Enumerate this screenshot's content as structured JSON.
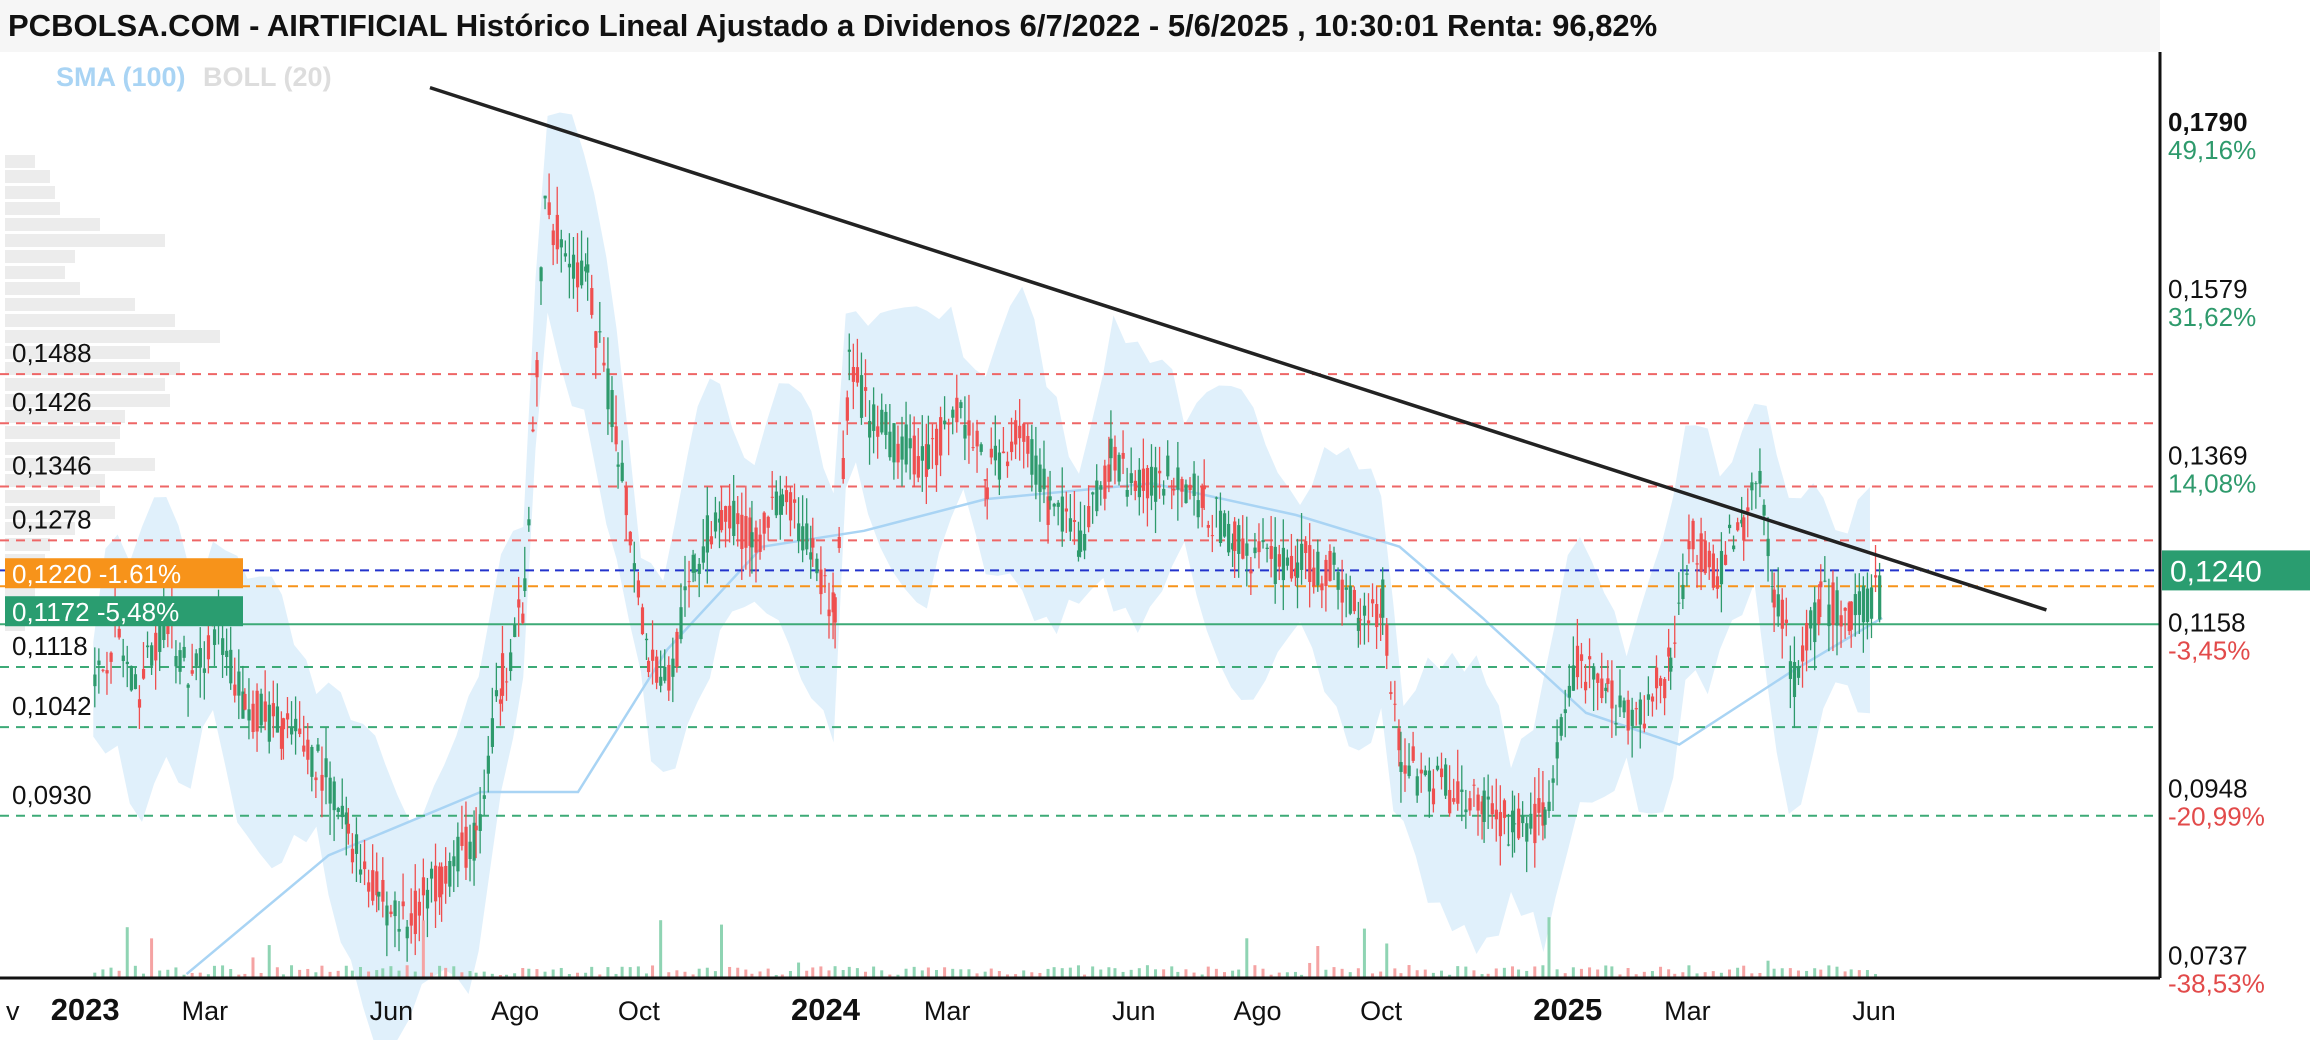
{
  "title": "PCBOLSA.COM - AIRTIFICIAL Histórico Lineal Ajustado a Dividenos 6/7/2022 - 5/6/2025 , 10:30:01 Renta: 96,82%",
  "indicators": {
    "sma": "SMA (100)",
    "boll": "BOLL (20)"
  },
  "colors": {
    "up": "#2e9a6c",
    "down": "#ef4f4f",
    "sma": "#a9d4f4",
    "band": "#d5ebfa",
    "trendline": "#222222",
    "current": "#2a9d70",
    "entry": "#f7931a",
    "support": "#3daa77"
  },
  "chart_data": {
    "type": "candlestick",
    "title": "PCBOLSA.COM - AIRTIFICIAL Histórico Lineal Ajustado a Dividenos 6/7/2022 - 5/6/2025 , 10:30:01 Renta: 96,82%",
    "y_axis": [
      {
        "value": 0.179,
        "label": "0,1790",
        "pct": "49,16%",
        "bold": true
      },
      {
        "value": 0.1579,
        "label": "0,1579",
        "pct": "31,62%"
      },
      {
        "value": 0.1369,
        "label": "0,1369",
        "pct": "14,08%"
      },
      {
        "value": 0.1158,
        "label": "0,1158",
        "pct": "-3,45%"
      },
      {
        "value": 0.0948,
        "label": "0,0948",
        "pct": "-20,99%"
      },
      {
        "value": 0.0737,
        "label": "0,0737",
        "pct": "-38,53%"
      }
    ],
    "x_axis": [
      {
        "label": "v",
        "date": "2022-11"
      },
      {
        "label": "2023",
        "date": "2023-01",
        "bold": true
      },
      {
        "label": "Mar",
        "date": "2023-03"
      },
      {
        "label": "Jun",
        "date": "2023-06"
      },
      {
        "label": "Ago",
        "date": "2023-08"
      },
      {
        "label": "Oct",
        "date": "2023-10"
      },
      {
        "label": "2024",
        "date": "2024-01",
        "bold": true
      },
      {
        "label": "Mar",
        "date": "2024-03"
      },
      {
        "label": "Jun",
        "date": "2024-06"
      },
      {
        "label": "Ago",
        "date": "2024-08"
      },
      {
        "label": "Oct",
        "date": "2024-10"
      },
      {
        "label": "2025",
        "date": "2025-01",
        "bold": true
      },
      {
        "label": "Mar",
        "date": "2025-03"
      },
      {
        "label": "Jun",
        "date": "2025-06"
      }
    ],
    "x_range": [
      "2022-11-20",
      "2025-10-20"
    ],
    "y_range": [
      0.0725,
      0.1895
    ],
    "price_levels": [
      {
        "value": 0.1488,
        "label": "0,1488",
        "style": "resistance"
      },
      {
        "value": 0.1426,
        "label": "0,1426",
        "style": "resistance"
      },
      {
        "value": 0.1346,
        "label": "0,1346",
        "style": "resistance"
      },
      {
        "value": 0.1278,
        "label": "0,1278",
        "style": "resistance"
      },
      {
        "value": 0.122,
        "label": "0,1220",
        "pct": "-1.61%",
        "style": "entry"
      },
      {
        "value": 0.1172,
        "label": "0,1172",
        "pct": "-5,48%",
        "style": "support-solid"
      },
      {
        "value": 0.1118,
        "label": "0,1118",
        "style": "support"
      },
      {
        "value": 0.1042,
        "label": "0,1042",
        "style": "support"
      },
      {
        "value": 0.093,
        "label": "0,0930",
        "style": "support"
      }
    ],
    "current_price": {
      "value": 0.124,
      "label": "0,1240"
    },
    "trendline": [
      {
        "date": "2023-06-20",
        "value": 0.185
      },
      {
        "date": "2025-08-25",
        "value": 0.119
      }
    ],
    "close_path": [
      [
        "2023-01-05",
        0.109
      ],
      [
        "2023-01-15",
        0.117
      ],
      [
        "2023-01-25",
        0.108
      ],
      [
        "2023-02-08",
        0.118
      ],
      [
        "2023-02-22",
        0.11
      ],
      [
        "2023-03-05",
        0.117
      ],
      [
        "2023-03-20",
        0.107
      ],
      [
        "2023-04-08",
        0.104
      ],
      [
        "2023-04-25",
        0.1
      ],
      [
        "2023-05-10",
        0.091
      ],
      [
        "2023-05-25",
        0.083
      ],
      [
        "2023-06-08",
        0.079
      ],
      [
        "2023-06-25",
        0.086
      ],
      [
        "2023-07-12",
        0.09
      ],
      [
        "2023-07-25",
        0.111
      ],
      [
        "2023-08-05",
        0.12
      ],
      [
        "2023-08-15",
        0.17
      ],
      [
        "2023-08-25",
        0.165
      ],
      [
        "2023-09-05",
        0.16
      ],
      [
        "2023-09-20",
        0.14
      ],
      [
        "2023-10-05",
        0.113
      ],
      [
        "2023-10-15",
        0.11
      ],
      [
        "2023-10-28",
        0.125
      ],
      [
        "2023-11-10",
        0.132
      ],
      [
        "2023-11-25",
        0.128
      ],
      [
        "2023-12-10",
        0.133
      ],
      [
        "2023-12-25",
        0.126
      ],
      [
        "2024-01-05",
        0.118
      ],
      [
        "2024-01-12",
        0.15
      ],
      [
        "2024-01-22",
        0.143
      ],
      [
        "2024-02-05",
        0.14
      ],
      [
        "2024-02-20",
        0.138
      ],
      [
        "2024-03-05",
        0.145
      ],
      [
        "2024-03-20",
        0.136
      ],
      [
        "2024-04-05",
        0.142
      ],
      [
        "2024-04-20",
        0.132
      ],
      [
        "2024-05-05",
        0.128
      ],
      [
        "2024-05-20",
        0.138
      ],
      [
        "2024-06-05",
        0.134
      ],
      [
        "2024-06-20",
        0.137
      ],
      [
        "2024-07-05",
        0.132
      ],
      [
        "2024-07-20",
        0.128
      ],
      [
        "2024-08-05",
        0.125
      ],
      [
        "2024-08-20",
        0.125
      ],
      [
        "2024-09-05",
        0.124
      ],
      [
        "2024-09-20",
        0.119
      ],
      [
        "2024-10-01",
        0.12
      ],
      [
        "2024-10-10",
        0.1
      ],
      [
        "2024-10-20",
        0.098
      ],
      [
        "2024-11-05",
        0.096
      ],
      [
        "2024-11-20",
        0.094
      ],
      [
        "2024-12-05",
        0.091
      ],
      [
        "2024-12-20",
        0.093
      ],
      [
        "2025-01-05",
        0.112
      ],
      [
        "2025-01-20",
        0.108
      ],
      [
        "2025-02-05",
        0.106
      ],
      [
        "2025-02-20",
        0.112
      ],
      [
        "2025-03-01",
        0.128
      ],
      [
        "2025-03-15",
        0.124
      ],
      [
        "2025-03-28",
        0.13
      ],
      [
        "2025-04-05",
        0.135
      ],
      [
        "2025-04-12",
        0.122
      ],
      [
        "2025-04-22",
        0.111
      ],
      [
        "2025-05-05",
        0.12
      ],
      [
        "2025-05-20",
        0.119
      ],
      [
        "2025-06-05",
        0.121
      ]
    ],
    "sma_path": [
      [
        "2023-02-20",
        0.073
      ],
      [
        "2023-05-01",
        0.088
      ],
      [
        "2023-07-15",
        0.096
      ],
      [
        "2023-09-01",
        0.096
      ],
      [
        "2023-10-15",
        0.114
      ],
      [
        "2023-12-01",
        0.127
      ],
      [
        "2024-01-20",
        0.129
      ],
      [
        "2024-03-20",
        0.133
      ],
      [
        "2024-06-10",
        0.135
      ],
      [
        "2024-08-20",
        0.131
      ],
      [
        "2024-10-10",
        0.127
      ],
      [
        "2024-11-20",
        0.118
      ],
      [
        "2025-01-10",
        0.106
      ],
      [
        "2025-02-25",
        0.102
      ],
      [
        "2025-04-20",
        0.111
      ],
      [
        "2025-06-05",
        0.118
      ]
    ]
  }
}
